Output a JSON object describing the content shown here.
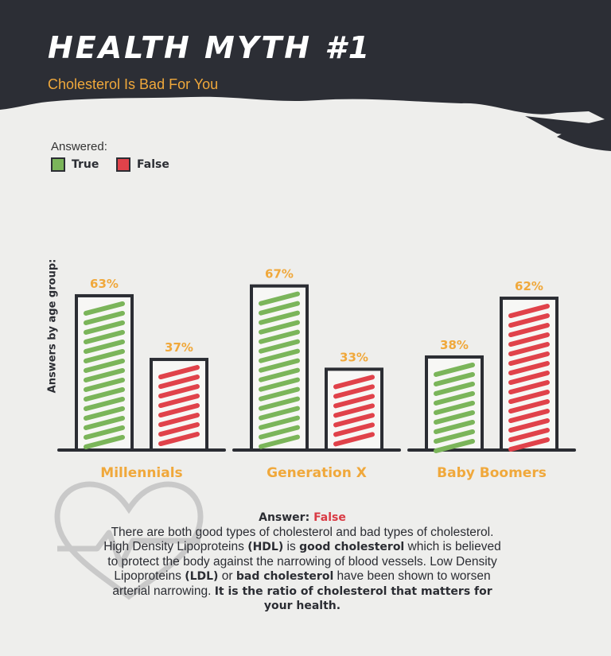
{
  "header": {
    "title": "HEALTH MYTH #1",
    "subtitle": "Cholesterol Is Bad For You"
  },
  "legend": {
    "heading": "Answered:",
    "items": [
      {
        "label": "True",
        "color": "#7bb55a"
      },
      {
        "label": "False",
        "color": "#e0424a"
      }
    ]
  },
  "chart_data": {
    "type": "bar",
    "ylabel": "Answers by age group:",
    "categories": [
      "Millennials",
      "Generation X",
      "Baby Boomers"
    ],
    "series": [
      {
        "name": "True",
        "values": [
          63,
          67,
          38
        ],
        "labels": [
          "63%",
          "67%",
          "38%"
        ],
        "color": "#7bb55a"
      },
      {
        "name": "False",
        "values": [
          37,
          33,
          62
        ],
        "labels": [
          "37%",
          "33%",
          "62%"
        ],
        "color": "#e0424a"
      }
    ],
    "ylim": [
      0,
      100
    ],
    "grid": false
  },
  "answer": {
    "heading": "Answer:",
    "value": "False",
    "p1": "There are both good types of cholesterol and bad types of cholesterol. High Density Lipoproteins ",
    "hdl": "(HDL)",
    "p2": " is ",
    "good": "good cholesterol",
    "p3": " which is believed to protect the body against the narrowing of blood vessels. Low Density Lipoproteins ",
    "ldl": "(LDL)",
    "p4": " or ",
    "bad": "bad cholesterol",
    "p5": " have been shown to worsen arterial narrowing. ",
    "conclusion": "It is the ratio of cholesterol that matters for your health."
  },
  "colors": {
    "accent": "#f0a83b",
    "dark": "#2b2d33",
    "true": "#7bb55a",
    "false": "#e0424a"
  }
}
